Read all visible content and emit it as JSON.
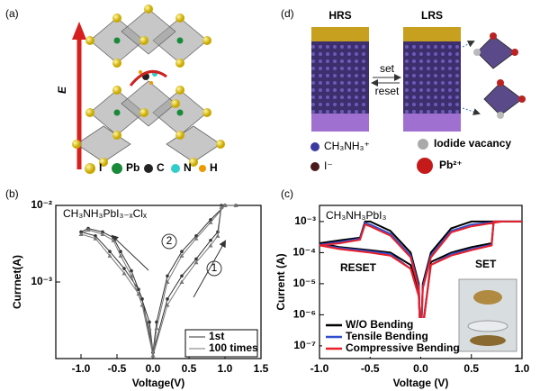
{
  "panel_labels": {
    "a": "(a)",
    "b": "(b)",
    "c": "(c)",
    "d": "(d)"
  },
  "structure": {
    "field_label": "E",
    "legend": [
      "I",
      "Pb",
      "C",
      "N",
      "H"
    ]
  },
  "switching": {
    "hrs": "HRS",
    "lrs": "LRS",
    "set": "set",
    "reset": "reset",
    "legend": [
      "CH₃NH₃⁺",
      "I⁻",
      "Iodide vacancy",
      "Pb²⁺"
    ]
  },
  "chart_data": [
    {
      "type": "line",
      "annotations": [
        "CH₃NH₃PbI₃₋ₓClₓ",
        "2",
        "1"
      ],
      "x_label": "Voltage(V)",
      "y_label": "Currnet(A)",
      "log_y": true,
      "legend": "lower right",
      "x": [
        0,
        0.2,
        0.4,
        0.6,
        0.8,
        0.9,
        0.95,
        1.0,
        1.15,
        1.0,
        0.8,
        0.6,
        0.4,
        0.2,
        0.05,
        0,
        -0.05,
        -0.2,
        -0.4,
        -0.6,
        -0.8,
        -1.0,
        -0.9,
        -0.7,
        -0.55,
        -0.45,
        -0.3,
        -0.15,
        0
      ],
      "series": [
        {
          "name": "1st",
          "color": "#333333",
          "marker": "circle",
          "values": [
            0.00012,
            0.0006,
            0.0012,
            0.002,
            0.0035,
            0.0045,
            0.01,
            0.01,
            0.01,
            0.01,
            0.0065,
            0.004,
            0.0025,
            0.0012,
            0.0003,
            0.00012,
            0.0003,
            0.0008,
            0.0015,
            0.0025,
            0.004,
            0.0045,
            0.005,
            0.0045,
            0.0038,
            0.0025,
            0.0014,
            0.0006,
            0.00012
          ]
        },
        {
          "name": "100 times",
          "color": "#777777",
          "marker": "triangle",
          "values": [
            0.00011,
            0.0005,
            0.001,
            0.0018,
            0.003,
            0.004,
            0.0095,
            0.01,
            0.01,
            0.01,
            0.006,
            0.0037,
            0.0022,
            0.001,
            0.00025,
            0.00011,
            0.00025,
            0.0007,
            0.0013,
            0.0022,
            0.0037,
            0.0042,
            0.0048,
            0.0042,
            0.0035,
            0.0022,
            0.0012,
            0.0005,
            0.00011
          ]
        }
      ],
      "xlim": [
        -1.35,
        1.5
      ],
      "xticks": [
        {
          "value": -1.0,
          "label": "-1.0"
        },
        {
          "value": -0.5,
          "label": "-0.5"
        },
        {
          "value": 0.0,
          "label": "0.0"
        },
        {
          "value": 0.5,
          "label": "0.5"
        },
        {
          "value": 1.0,
          "label": "1.0"
        },
        1.5
      ],
      "ylim": [
        0.0001,
        0.01
      ],
      "yticks": [
        {
          "value": 0.01,
          "label": "10⁻²"
        },
        {
          "value": 0.001,
          "label": "10⁻³"
        }
      ]
    },
    {
      "type": "line",
      "annotations": [
        "CH₃NH₃PbI₃",
        "RESET",
        "SET"
      ],
      "x_label": "Voltage (V)",
      "y_label": "Current (A)",
      "log_y": true,
      "legend": "lower left",
      "x": [
        0,
        0.1,
        0.3,
        0.5,
        0.7,
        0.72,
        0.8,
        1.0,
        0.8,
        0.5,
        0.3,
        0.1,
        0.02,
        0,
        -0.02,
        -0.1,
        -0.3,
        -0.5,
        -0.55,
        -0.6,
        -0.8,
        -1.0,
        -0.8,
        -0.5,
        -0.3,
        -0.1,
        -0.02,
        0
      ],
      "series": [
        {
          "name": "W/O Bending",
          "color": "#000000",
          "values": [
            1e-07,
            5e-05,
            0.0001,
            0.00015,
            0.0002,
            0.001,
            0.001,
            0.001,
            0.001,
            0.001,
            0.0006,
            0.0001,
            1e-05,
            1e-07,
            1e-05,
            0.0001,
            0.0005,
            0.001,
            0.001,
            0.0003,
            0.00025,
            0.0002,
            0.00015,
            0.00012,
            0.0001,
            4e-05,
            5e-06,
            1e-07
          ]
        },
        {
          "name": "Tensile Bending",
          "color": "#2f4fd0",
          "values": [
            1.5e-07,
            4e-05,
            9e-05,
            0.00013,
            0.00018,
            0.001,
            0.001,
            0.001,
            0.001,
            0.0008,
            0.0005,
            8e-05,
            8e-06,
            1.5e-07,
            8e-06,
            8e-05,
            0.0004,
            0.0008,
            0.0009,
            0.00028,
            0.00022,
            0.00018,
            0.00014,
            0.00011,
            9e-05,
            3e-05,
            4e-06,
            1.5e-07
          ]
        },
        {
          "name": "Compressive Bending",
          "color": "#e8202a",
          "values": [
            1.2e-07,
            4e-05,
            8e-05,
            0.00012,
            0.00017,
            0.001,
            0.001,
            0.001,
            0.001,
            0.0007,
            0.00045,
            7e-05,
            7e-06,
            1.2e-07,
            7e-06,
            7e-05,
            0.00035,
            0.0007,
            0.0008,
            0.00026,
            0.0002,
            0.00017,
            0.00013,
            0.0001,
            8e-05,
            3e-05,
            4e-06,
            1.2e-07
          ]
        }
      ],
      "xlim": [
        -1.0,
        1.0
      ],
      "xticks": [
        {
          "value": -1.0,
          "label": "-1.0"
        },
        {
          "value": -0.5,
          "label": "-0.5"
        },
        {
          "value": 0.0,
          "label": "0.0"
        },
        {
          "value": 0.5,
          "label": "0.5"
        },
        {
          "value": 1.0,
          "label": "1.0"
        }
      ],
      "ylim": [
        3.9e-08,
        0.0033
      ],
      "yticks": [
        {
          "value": 0.001,
          "label": "10⁻³"
        },
        {
          "value": 0.0001,
          "label": "10⁻⁴"
        },
        {
          "value": 1e-05,
          "label": "10⁻⁵"
        },
        {
          "value": 1e-06,
          "label": "10⁻⁶"
        },
        {
          "value": 1e-07,
          "label": "10⁻⁷"
        }
      ]
    }
  ]
}
